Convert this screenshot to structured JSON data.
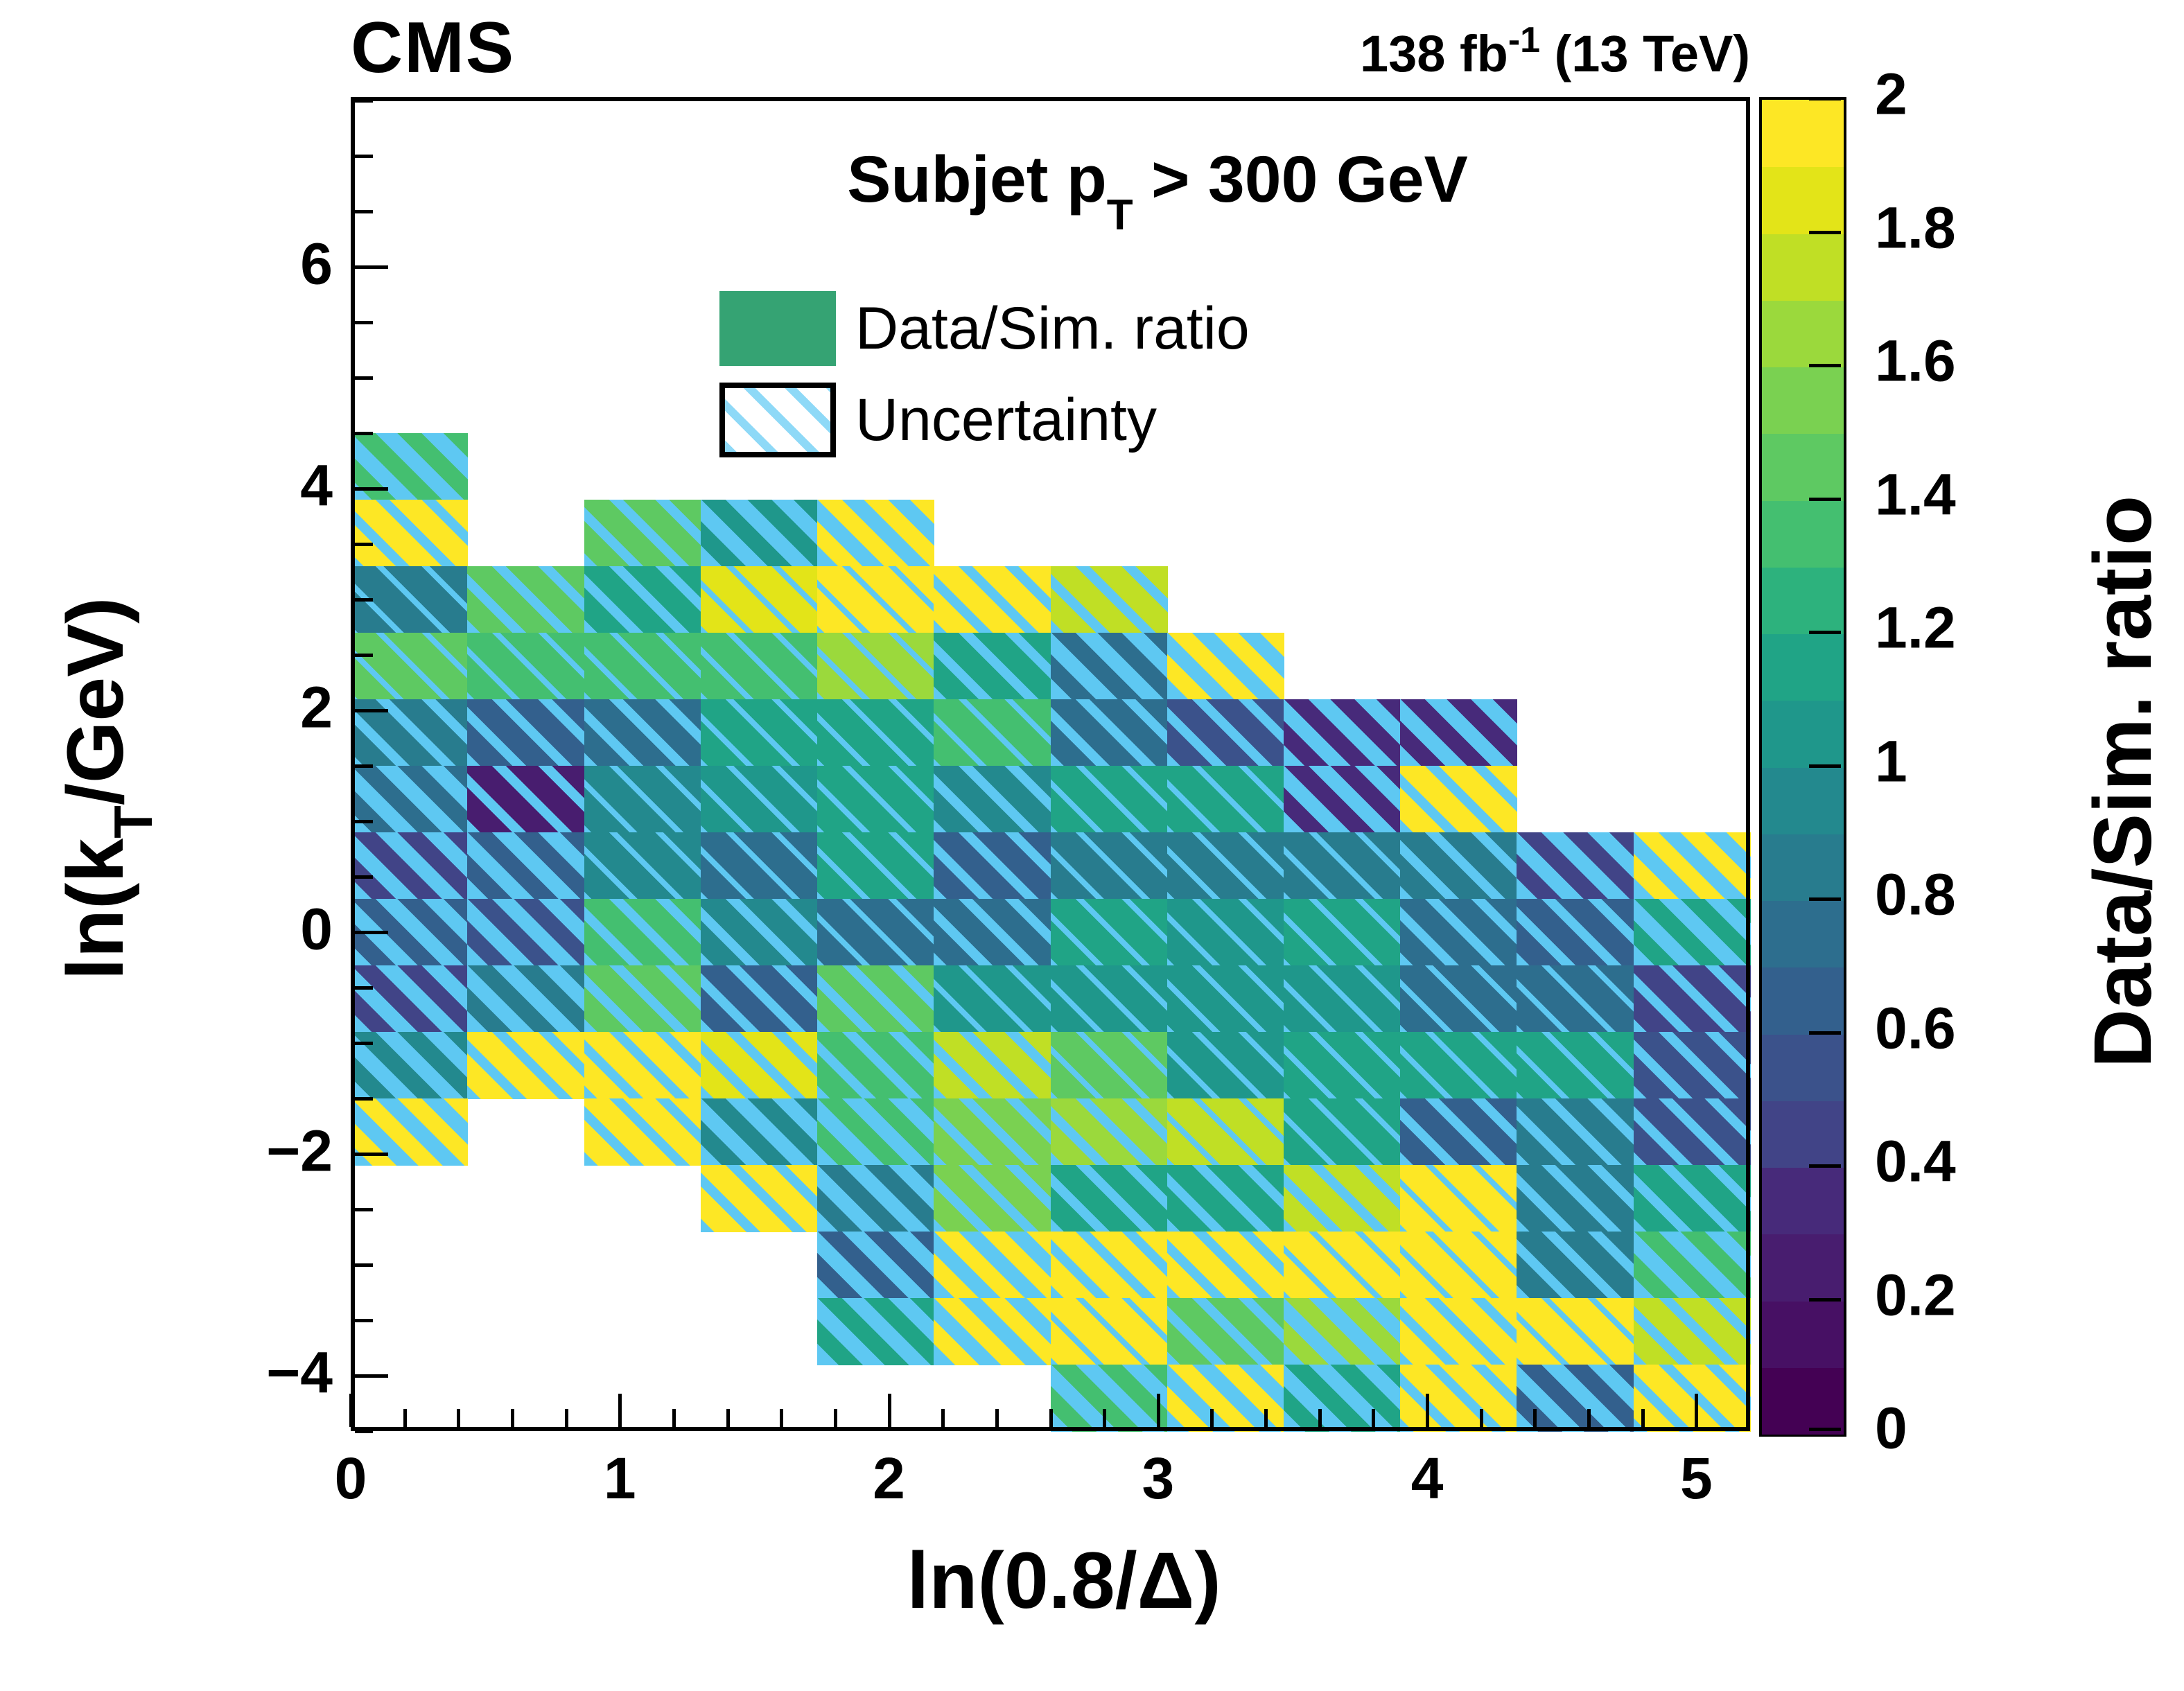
{
  "header": {
    "experiment": "CMS",
    "lumi_prefix": "138 fb",
    "lumi_sup": "-1",
    "lumi_suffix": " (13 TeV)"
  },
  "plot": {
    "title_prefix": "Subjet  p",
    "title_sub": "T",
    "title_suffix": " > 300 GeV"
  },
  "legend": {
    "items": [
      {
        "label": "Data/Sim. ratio",
        "swatch": "solid",
        "color": "#35a373"
      },
      {
        "label": "Uncertainty",
        "swatch": "hatch",
        "hatch_color": "#8ed9f7"
      }
    ]
  },
  "axes": {
    "x_title": "ln(0.8/Δ)",
    "y_title_prefix": "ln(k",
    "y_title_sub": "T",
    "y_title_suffix": "/GeV)",
    "z_title": "Data/Sim. ratio"
  },
  "chart_data": {
    "type": "heatmap",
    "title": "Subjet pT > 300 GeV",
    "xlabel": "ln(0.8/Δ)",
    "ylabel": "ln(kT/GeV)",
    "zlabel": "Data/Sim. ratio",
    "x_range": [
      0,
      5.2
    ],
    "y_range": [
      -4.5,
      7.53
    ],
    "z_range": [
      0,
      2
    ],
    "x_tick_values": [
      0,
      1,
      2,
      3,
      4,
      5
    ],
    "x_minor_step": 0.2,
    "y_tick_values": [
      6,
      4,
      2,
      0,
      -2,
      -4
    ],
    "y_minor_step": 0.5,
    "z_tick_labels": [
      "0",
      "0.2",
      "0.4",
      "0.6",
      "0.8",
      "1",
      "1.2",
      "1.4",
      "1.6",
      "1.8",
      "2"
    ],
    "x_edges": [
      0,
      0.433,
      0.867,
      1.3,
      1.733,
      2.167,
      2.6,
      3.033,
      3.467,
      3.9,
      4.333,
      4.767,
      5.2
    ],
    "y_edges_top_to_bottom": [
      4.5,
      3.9,
      3.3,
      2.7,
      2.1,
      1.5,
      0.9,
      0.3,
      -0.3,
      -0.9,
      -1.5,
      -2.1,
      -2.7,
      -3.3,
      -3.9,
      -4.5
    ],
    "palette_20": [
      "#440154",
      "#471064",
      "#481d6f",
      "#472a7a",
      "#414487",
      "#3b528b",
      "#33608d",
      "#2d6e8e",
      "#287c8e",
      "#23898e",
      "#1f978b",
      "#20a486",
      "#2db27d",
      "#44bf70",
      "#5ec962",
      "#7ad151",
      "#9bd93c",
      "#c0df25",
      "#e3e418",
      "#fde725"
    ],
    "hatch_color": "#5ec8f2",
    "hatch_legend": "uncertainty level: 1=small, 2=medium, 3=large; null cell = empty",
    "cells_value_and_uncertainty_rows_top_to_bottom": [
      [
        [
          1.35,
          3
        ],
        null,
        null,
        null,
        null,
        null,
        null,
        null,
        null,
        null,
        null,
        null
      ],
      [
        [
          1.95,
          2
        ],
        null,
        [
          1.45,
          2
        ],
        [
          1.05,
          3
        ],
        [
          1.95,
          3
        ],
        null,
        null,
        null,
        null,
        null,
        null,
        null
      ],
      [
        [
          0.8,
          1
        ],
        [
          1.45,
          2
        ],
        [
          1.15,
          2
        ],
        [
          1.8,
          1
        ],
        [
          1.95,
          1
        ],
        [
          1.95,
          2
        ],
        [
          1.75,
          2
        ],
        null,
        null,
        null,
        null,
        null
      ],
      [
        [
          1.45,
          1
        ],
        [
          1.3,
          1
        ],
        [
          1.35,
          1
        ],
        [
          1.35,
          1
        ],
        [
          1.65,
          1
        ],
        [
          1.1,
          2
        ],
        [
          0.75,
          3
        ],
        [
          1.95,
          3
        ],
        null,
        null,
        null,
        null
      ],
      [
        [
          0.8,
          2
        ],
        [
          0.65,
          2
        ],
        [
          0.7,
          2
        ],
        [
          1.15,
          1
        ],
        [
          1.1,
          1
        ],
        [
          1.35,
          1
        ],
        [
          0.7,
          2
        ],
        [
          0.55,
          2
        ],
        [
          0.35,
          3
        ],
        [
          0.35,
          3
        ],
        null,
        null
      ],
      [
        [
          0.7,
          3
        ],
        [
          0.25,
          2
        ],
        [
          0.95,
          1
        ],
        [
          1.0,
          1
        ],
        [
          1.15,
          1
        ],
        [
          0.95,
          2
        ],
        [
          1.15,
          1
        ],
        [
          1.15,
          1
        ],
        [
          0.35,
          3
        ],
        [
          1.95,
          2
        ],
        null,
        null
      ],
      [
        [
          0.45,
          3
        ],
        [
          0.6,
          3
        ],
        [
          0.95,
          1
        ],
        [
          0.7,
          1
        ],
        [
          1.15,
          1
        ],
        [
          0.6,
          2
        ],
        [
          0.8,
          1
        ],
        [
          0.8,
          1
        ],
        [
          0.8,
          1
        ],
        [
          0.85,
          2
        ],
        [
          0.4,
          3
        ],
        [
          1.95,
          3
        ]
      ],
      [
        [
          0.65,
          3
        ],
        [
          0.55,
          3
        ],
        [
          1.35,
          2
        ],
        [
          0.9,
          2
        ],
        [
          0.7,
          1
        ],
        [
          0.7,
          2
        ],
        [
          1.1,
          1
        ],
        [
          1.0,
          1
        ],
        [
          1.15,
          1
        ],
        [
          0.7,
          2
        ],
        [
          0.6,
          2
        ],
        [
          1.15,
          3
        ]
      ],
      [
        [
          0.45,
          3
        ],
        [
          0.8,
          3
        ],
        [
          1.4,
          2
        ],
        [
          0.6,
          2
        ],
        [
          1.4,
          2
        ],
        [
          1.0,
          1
        ],
        [
          1.0,
          1
        ],
        [
          1.0,
          1
        ],
        [
          1.0,
          1
        ],
        [
          0.75,
          1
        ],
        [
          0.75,
          1
        ],
        [
          0.45,
          2
        ]
      ],
      [
        [
          0.95,
          3
        ],
        [
          1.95,
          2
        ],
        [
          1.95,
          2
        ],
        [
          1.8,
          2
        ],
        [
          1.35,
          2
        ],
        [
          1.7,
          2
        ],
        [
          1.45,
          1
        ],
        [
          1.05,
          1
        ],
        [
          1.1,
          1
        ],
        [
          1.1,
          1
        ],
        [
          1.1,
          1
        ],
        [
          0.55,
          2
        ]
      ],
      [
        [
          1.95,
          3
        ],
        null,
        [
          1.95,
          2
        ],
        [
          0.95,
          3
        ],
        [
          1.35,
          3
        ],
        [
          1.5,
          2
        ],
        [
          1.65,
          2
        ],
        [
          1.75,
          1
        ],
        [
          1.15,
          1
        ],
        [
          0.6,
          2
        ],
        [
          0.8,
          2
        ],
        [
          0.55,
          2
        ]
      ],
      [
        null,
        null,
        null,
        [
          1.95,
          2
        ],
        [
          0.8,
          3
        ],
        [
          1.5,
          2
        ],
        [
          1.1,
          2
        ],
        [
          1.1,
          2
        ],
        [
          1.75,
          2
        ],
        [
          1.95,
          1
        ],
        [
          0.85,
          2
        ],
        [
          1.1,
          2
        ]
      ],
      [
        null,
        null,
        null,
        null,
        [
          0.65,
          3
        ],
        [
          1.95,
          3
        ],
        [
          1.95,
          2
        ],
        [
          1.95,
          2
        ],
        [
          1.95,
          1
        ],
        [
          1.95,
          1
        ],
        [
          0.85,
          2
        ],
        [
          1.35,
          3
        ]
      ],
      [
        null,
        null,
        null,
        null,
        [
          1.1,
          3
        ],
        [
          1.95,
          3
        ],
        [
          1.95,
          1
        ],
        [
          1.4,
          2
        ],
        [
          1.65,
          3
        ],
        [
          1.95,
          2
        ],
        [
          1.95,
          1
        ],
        [
          1.7,
          2
        ]
      ],
      [
        null,
        null,
        null,
        null,
        null,
        null,
        [
          1.35,
          3
        ],
        [
          1.95,
          3
        ],
        [
          1.15,
          3
        ],
        [
          1.95,
          2
        ],
        [
          0.6,
          3
        ],
        [
          1.95,
          2
        ]
      ]
    ],
    "colorbar": {
      "discrete_steps": 20,
      "tick_step": 0.2,
      "position": "right"
    },
    "legend_position": "top-center-inside",
    "grid": false
  }
}
